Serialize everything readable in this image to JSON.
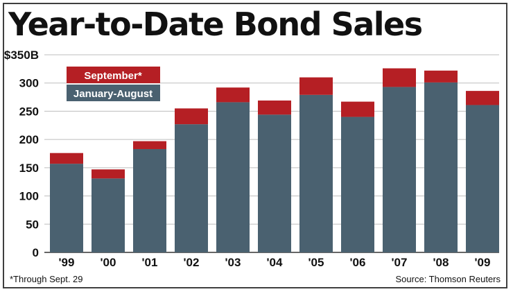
{
  "title": "Year-to-Date Bond Sales",
  "footnote": "*Through Sept. 29",
  "source": "Source: Thomson Reuters",
  "colors": {
    "jan_aug": "#4a6170",
    "september": "#b51f24",
    "grid": "#bdbdbd",
    "text": "#111111"
  },
  "chart_data": {
    "type": "bar",
    "stacked": true,
    "categories": [
      "'99",
      "'00",
      "'01",
      "'02",
      "'03",
      "'04",
      "'05",
      "'06",
      "'07",
      "'08",
      "'09"
    ],
    "series": [
      {
        "name": "January-August",
        "values": [
          157,
          131,
          183,
          227,
          266,
          244,
          279,
          240,
          293,
          301,
          261
        ]
      },
      {
        "name": "September*",
        "values": [
          19,
          16,
          14,
          28,
          26,
          25,
          31,
          27,
          33,
          21,
          25
        ]
      }
    ],
    "ylim": [
      0,
      350
    ],
    "yticks": [
      0,
      50,
      100,
      150,
      200,
      250,
      300,
      350
    ],
    "ytick_labels": [
      "0",
      "50",
      "100",
      "150",
      "200",
      "250",
      "300",
      "$350B"
    ],
    "legend_position": "top-left",
    "grid": true
  }
}
